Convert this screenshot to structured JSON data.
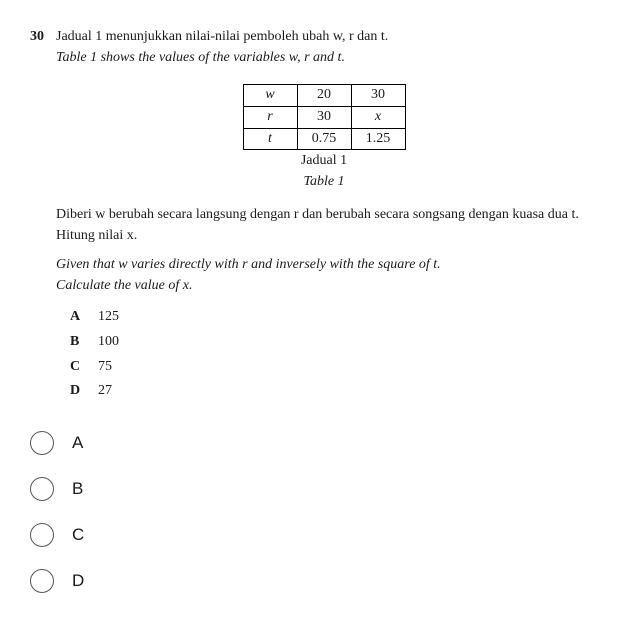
{
  "question": {
    "number": "30",
    "prompt_ms": "Jadual 1 menunjukkan nilai-nilai pemboleh ubah w, r dan t.",
    "prompt_en": "Table 1 shows the values of the variables w, r and t.",
    "table": {
      "row_labels": [
        "w",
        "r",
        "t"
      ],
      "cols": [
        [
          "20",
          "30",
          "0.75"
        ],
        [
          "30",
          "x",
          "1.25"
        ]
      ],
      "caption_ms": "Jadual 1",
      "caption_en": "Table 1",
      "border_color": "#000000",
      "cell_min_width": 54,
      "font_size": 14
    },
    "body_ms_1": "Diberi w berubah secara langsung dengan r dan berubah secara songsang dengan kuasa dua t.",
    "body_ms_2": "Hitung nilai x.",
    "body_en_1": "Given that w varies directly with r and inversely with the square of t.",
    "body_en_2": "Calculate the value of x.",
    "answers": [
      {
        "label": "A",
        "value": "125"
      },
      {
        "label": "B",
        "value": "100"
      },
      {
        "label": "C",
        "value": "75"
      },
      {
        "label": "D",
        "value": "27"
      }
    ],
    "choices": [
      "A",
      "B",
      "C",
      "D"
    ]
  },
  "style": {
    "background": "#ffffff",
    "text_color": "#1a1a1a",
    "font_family": "Georgia, 'Times New Roman', serif",
    "base_font_size": 14,
    "radio_border": "#555555",
    "radio_size": 24,
    "choice_font_family": "Arial, sans-serif",
    "choice_font_size": 17
  }
}
